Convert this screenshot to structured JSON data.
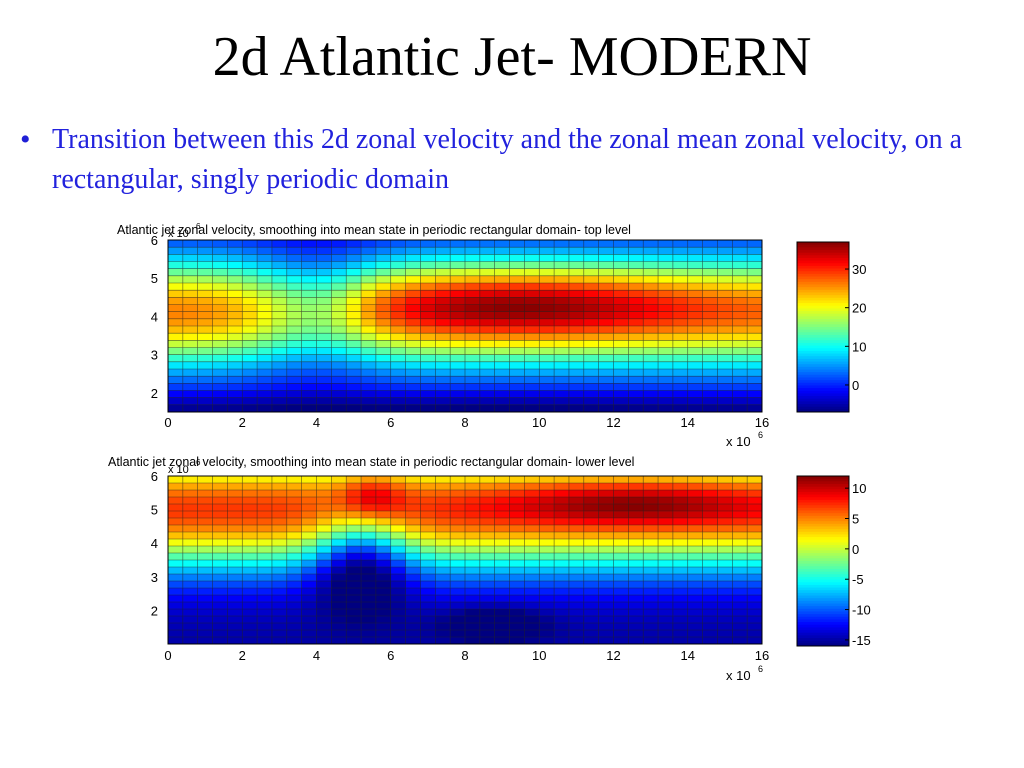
{
  "slide": {
    "title": "2d Atlantic Jet- MODERN",
    "bullet": "Transition between this 2d zonal velocity and the zonal mean zonal velocity, on a rectangular, singly periodic domain",
    "colors": {
      "title": "#000000",
      "bullet": "#2222dd"
    }
  },
  "chart_data": [
    {
      "type": "heatmap",
      "title": "Atlantic jet zonal velocity, smoothing into mean state in periodic rectangular domain- top level",
      "x_ticks": [
        "0",
        "2",
        "4",
        "6",
        "8",
        "10",
        "12",
        "14",
        "16"
      ],
      "y_ticks": [
        "2",
        "3",
        "4",
        "5",
        "6"
      ],
      "x_multiplier": "x 10",
      "x_multiplier_exp": "6",
      "y_multiplier": "x 10",
      "y_multiplier_exp": "6",
      "xlim": [
        0,
        16000000
      ],
      "ylim": [
        1500000,
        6000000
      ],
      "grid": true,
      "colormap": "jet",
      "colorbar_range": [
        -7,
        37
      ],
      "colorbar_ticks": [
        "0",
        "10",
        "20",
        "30"
      ],
      "colorbar_tick_values": [
        0,
        10,
        20,
        30
      ],
      "x_cells": 40,
      "y_cells": 24,
      "values_description_note": null,
      "field": {
        "background_core": 26,
        "background_core_y": 4.1,
        "background_width": 1.0,
        "jet_peak": 37,
        "jet_center_x": 9.5,
        "jet_center_y": 4.35,
        "jet_width_x": 3.2,
        "jet_width_y": 0.65,
        "south_min": -5,
        "south_min_x": 9.0,
        "south_min_y": 1.6,
        "valley_x": 4.0,
        "valley_depth": 10
      }
    },
    {
      "type": "heatmap",
      "title": "Atlantic jet zonal velocity, smoothing into mean state in periodic rectangular domain- lower level",
      "x_ticks": [
        "0",
        "2",
        "4",
        "6",
        "8",
        "10",
        "12",
        "14",
        "16"
      ],
      "y_ticks": [
        "2",
        "3",
        "4",
        "5",
        "6"
      ],
      "x_multiplier": "x 10",
      "x_multiplier_exp": "6",
      "y_multiplier": "x 10",
      "y_multiplier_exp": "6",
      "xlim": [
        0,
        16000000
      ],
      "ylim": [
        1000000,
        6000000
      ],
      "grid": true,
      "colormap": "jet",
      "colorbar_range": [
        -16,
        12
      ],
      "colorbar_ticks": [
        "10",
        "5",
        "0",
        "-5",
        "-10",
        "-15"
      ],
      "colorbar_tick_values": [
        10,
        5,
        0,
        -5,
        -10,
        -15
      ],
      "x_cells": 40,
      "y_cells": 24,
      "field": {
        "background_core": 7,
        "background_core_y": 5.0,
        "jet_peak": 12,
        "jet_center_x": 12.5,
        "jet_center_y": 5.2,
        "spot_peak": 12,
        "spot_x": 5.5,
        "spot_y": 5.4,
        "south_min": -16,
        "south_min_x": 8.8,
        "south_min_y": 1.6,
        "valley_x": 5.2,
        "valley_depth": 10
      }
    }
  ]
}
